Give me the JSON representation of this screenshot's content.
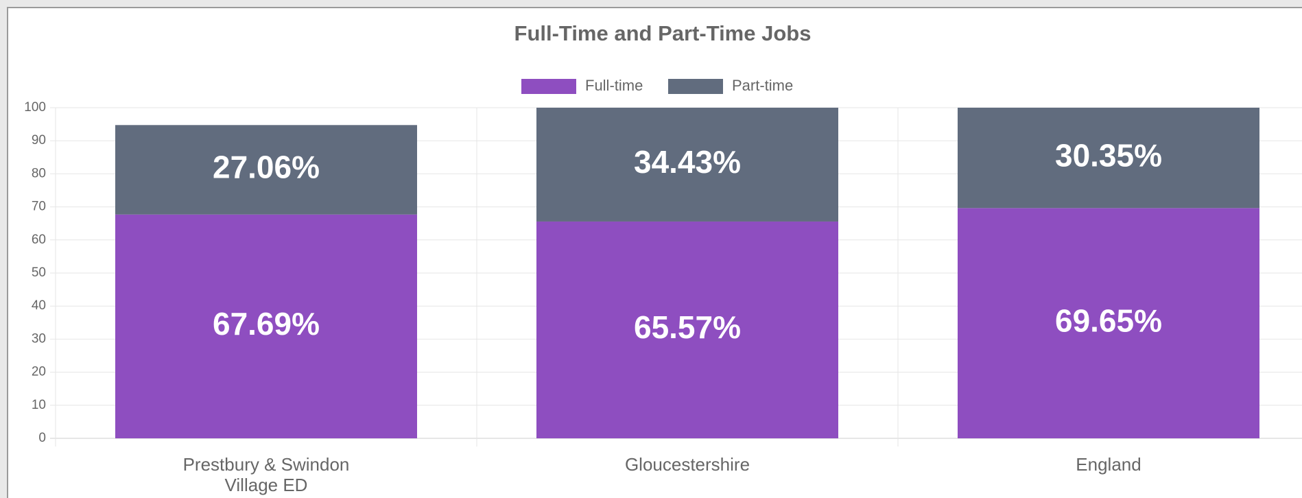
{
  "chart_data": {
    "type": "stacked_bar",
    "title": "Full-Time and Part-Time Jobs",
    "categories": [
      [
        "Prestbury & Swindon",
        "Village ED"
      ],
      [
        "Gloucestershire"
      ],
      [
        "England"
      ]
    ],
    "series": [
      {
        "name": "Full-time",
        "color": "#8e4ec0",
        "values": [
          67.69,
          65.57,
          69.65
        ],
        "value_labels": [
          "67.69%",
          "65.57%",
          "69.65%"
        ]
      },
      {
        "name": "Part-time",
        "color": "#616c7e",
        "values": [
          27.06,
          34.43,
          30.35
        ],
        "value_labels": [
          "27.06%",
          "34.43%",
          "30.35%"
        ]
      }
    ],
    "ylim": [
      0,
      100
    ],
    "yticks": [
      0,
      10,
      20,
      30,
      40,
      50,
      60,
      70,
      80,
      90,
      100
    ],
    "grid": true,
    "legend": "top"
  }
}
